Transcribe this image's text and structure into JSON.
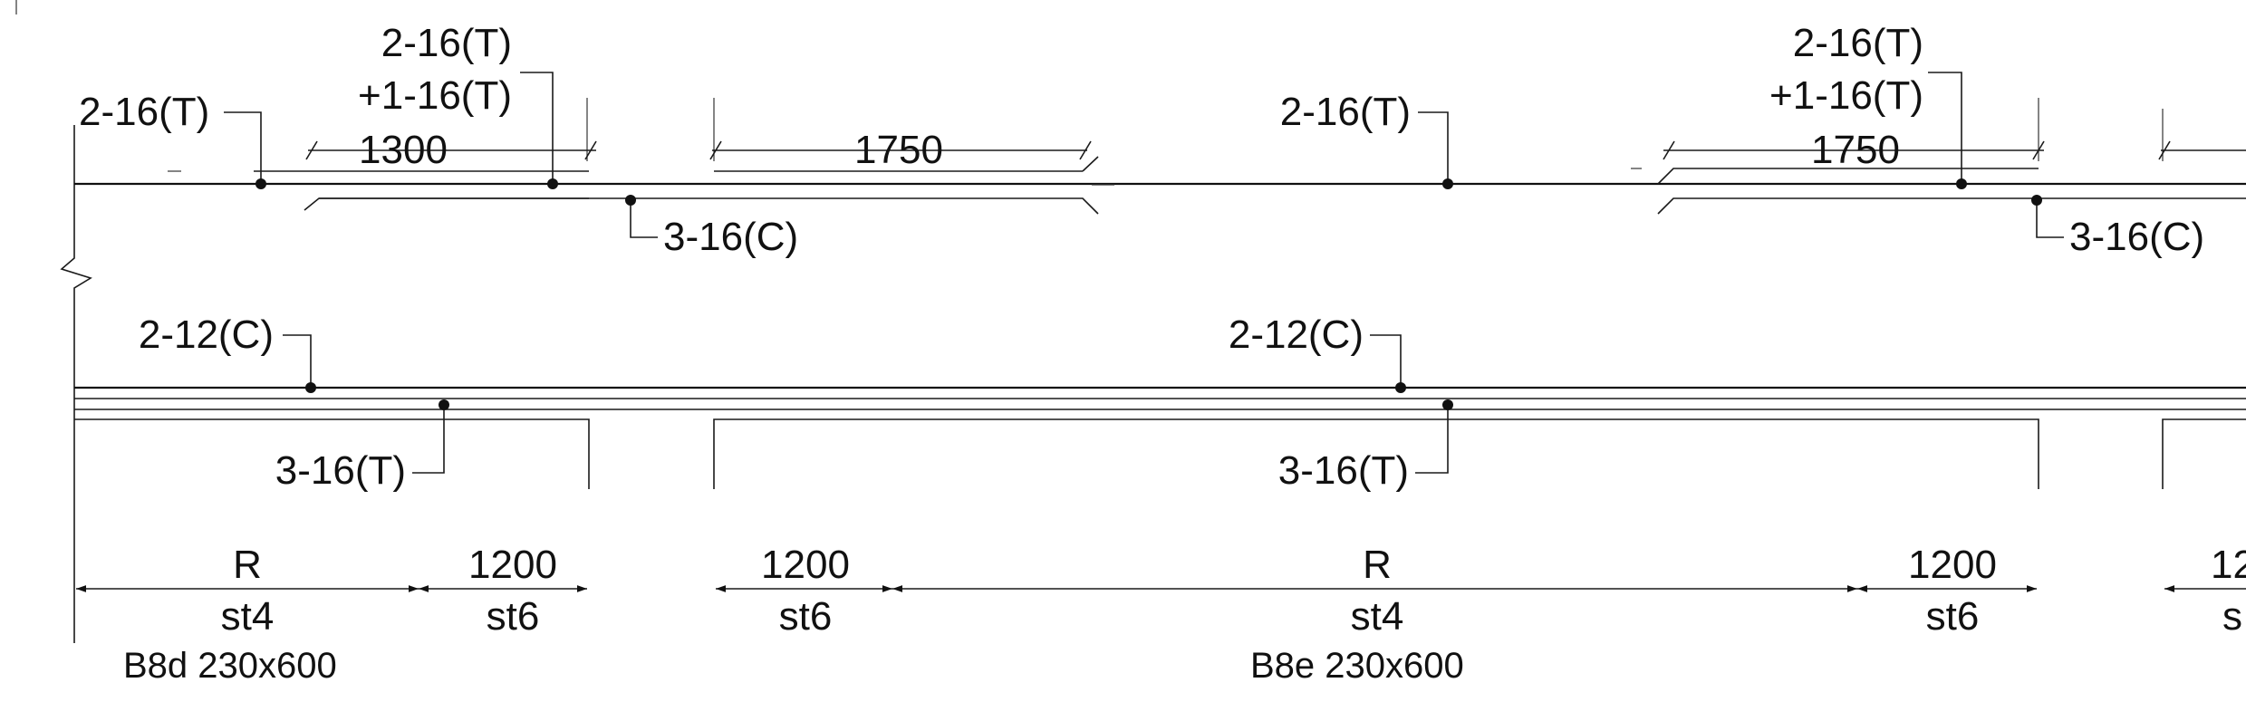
{
  "beams": [
    {
      "id": "B8d",
      "title": "B8d 230x600"
    },
    {
      "id": "B8e",
      "title": "B8e 230x600"
    }
  ],
  "top_callouts": [
    {
      "text": "2-16(T)"
    },
    {
      "text": "2-16(T)"
    },
    {
      "text": "+1-16(T)"
    },
    {
      "text": "2-16(T)"
    },
    {
      "text": "2-16(T)"
    },
    {
      "text": "+1-16(T)"
    }
  ],
  "curtail_callouts": [
    {
      "text": "3-16(C)"
    },
    {
      "text": "3-16(C)"
    }
  ],
  "extra_bar_lengths": [
    {
      "text": "1300"
    },
    {
      "text": "1750"
    },
    {
      "text": "1750"
    }
  ],
  "bottom_callouts": [
    {
      "text": "2-12(C)"
    },
    {
      "text": "3-16(T)"
    },
    {
      "text": "2-12(C)"
    },
    {
      "text": "3-16(T)"
    }
  ],
  "stirrup_zones": [
    {
      "dim": "R",
      "stirrup": "st4"
    },
    {
      "dim": "1200",
      "stirrup": "st6"
    },
    {
      "dim": "1200",
      "stirrup": "st6"
    },
    {
      "dim": "R",
      "stirrup": "st4"
    },
    {
      "dim": "1200",
      "stirrup": "st6"
    },
    {
      "dim": "12",
      "stirrup": "s"
    }
  ],
  "colors": {
    "line": "#1a1a1a",
    "text": "#111111",
    "background": "#ffffff"
  }
}
